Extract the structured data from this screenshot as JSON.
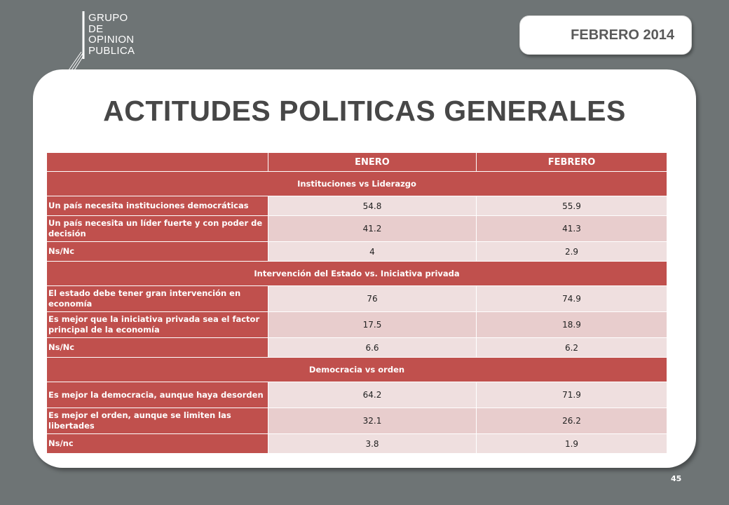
{
  "logo": {
    "lines": [
      "GRUPO",
      "DE",
      "OPINION",
      "PUBLICA"
    ]
  },
  "date_badge": "FEBRERO 2014",
  "title": "ACTITUDES POLITICAS GENERALES",
  "table": {
    "columns": [
      "",
      "ENERO",
      "FEBRERO"
    ],
    "sections": [
      {
        "heading": "Instituciones vs Liderazgo",
        "rows": [
          {
            "label": "Un país necesita instituciones democráticas",
            "enero": "54.8",
            "febrero": "55.9"
          },
          {
            "label": "Un país necesita un líder fuerte y con poder de decisión",
            "enero": "41.2",
            "febrero": "41.3"
          },
          {
            "label": "Ns/Nc",
            "enero": "4",
            "febrero": "2.9"
          }
        ]
      },
      {
        "heading": "Intervención del Estado vs. Iniciativa privada",
        "rows": [
          {
            "label": "El estado debe tener gran intervención en economía",
            "enero": "76",
            "febrero": "74.9"
          },
          {
            "label": "Es mejor que la iniciativa privada sea el factor principal de la economía",
            "enero": "17.5",
            "febrero": "18.9"
          },
          {
            "label": "Ns/Nc",
            "enero": "6.6",
            "febrero": "6.2"
          }
        ]
      },
      {
        "heading": "Democracia vs orden",
        "rows": [
          {
            "label": "Es mejor la democracia, aunque haya desorden",
            "enero": "64.2",
            "febrero": "71.9"
          },
          {
            "label": "Es mejor el orden, aunque se limiten las libertades",
            "enero": "32.1",
            "febrero": "26.2"
          },
          {
            "label": "Ns/nc",
            "enero": "3.8",
            "febrero": "1.9"
          }
        ]
      }
    ]
  },
  "page_number": "45",
  "colors": {
    "background": "#6e7475",
    "header_red": "#c0504d",
    "row_light": "#efdfdf",
    "row_dark": "#e8cdcd"
  }
}
